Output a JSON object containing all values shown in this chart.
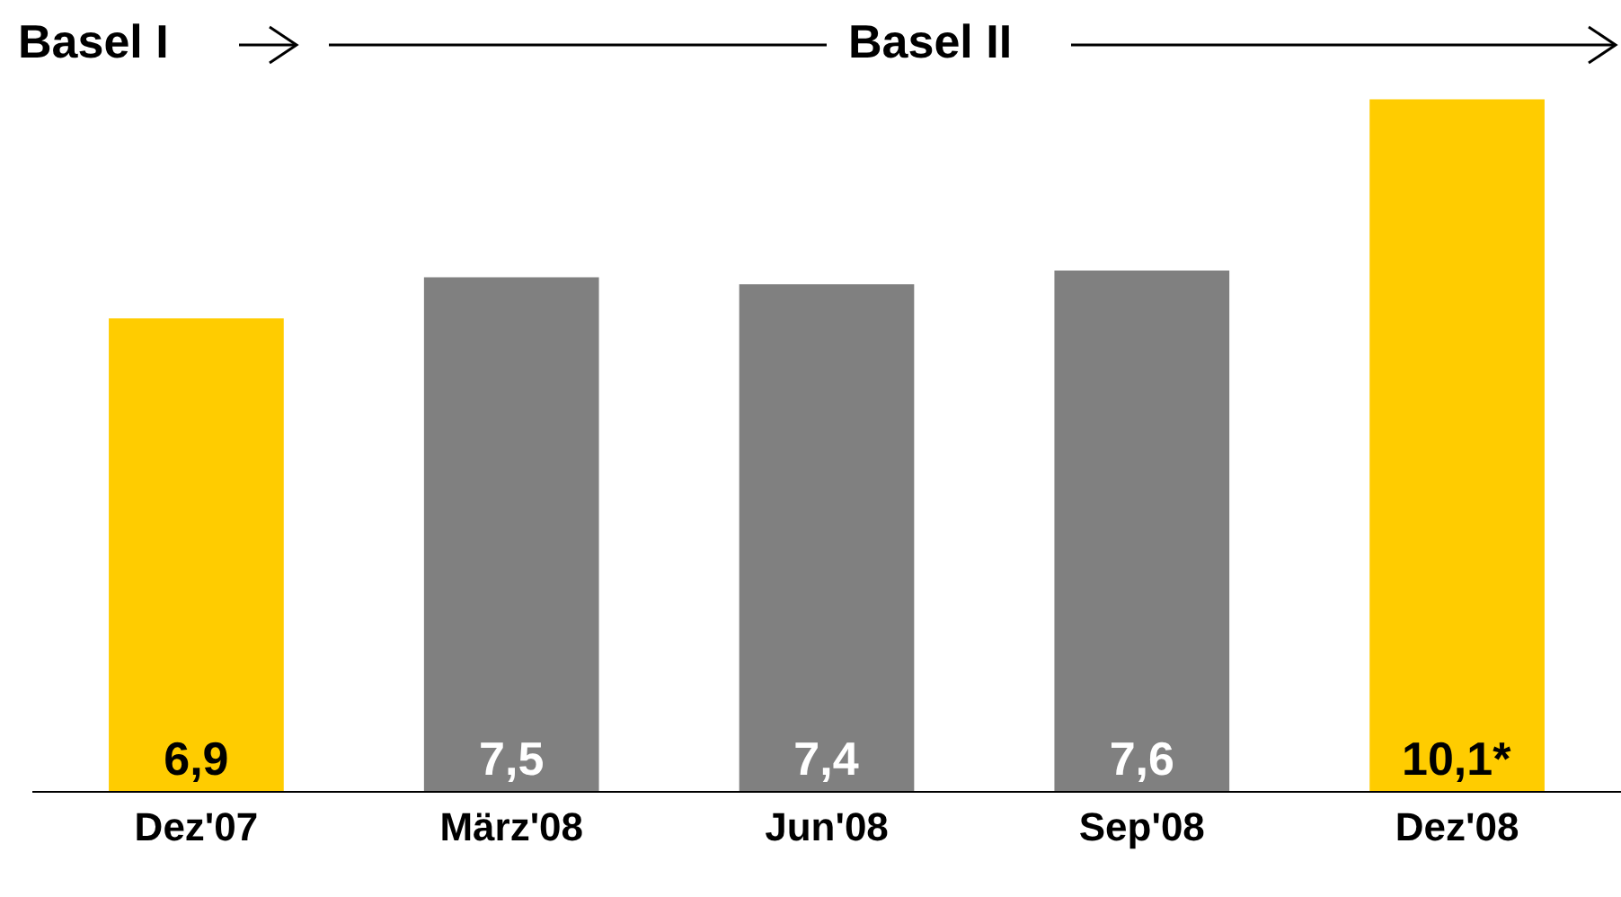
{
  "chart_data": {
    "type": "bar",
    "categories": [
      "Dez'07",
      "März'08",
      "Jun'08",
      "Sep'08",
      "Dez'08"
    ],
    "values": [
      6.9,
      7.5,
      7.4,
      7.6,
      10.1
    ],
    "colors": [
      "#ffcc00",
      "#808080",
      "#808080",
      "#808080",
      "#ffcc00"
    ],
    "value_labels": [
      "6,9",
      "7,5",
      "7,4",
      "7,6",
      "10,1*"
    ],
    "annotations": [
      "Basel I",
      "Basel II"
    ],
    "grid": false,
    "legend": false
  }
}
